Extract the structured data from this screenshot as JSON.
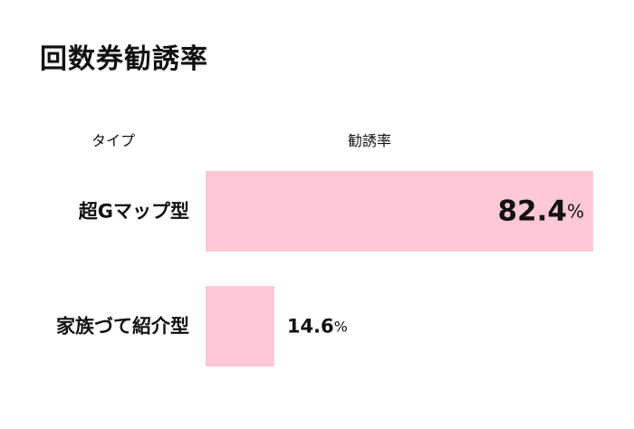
{
  "title": "回数券勧誘率",
  "columns": {
    "type": "タイプ",
    "rate": "勧誘率"
  },
  "colors": {
    "bar": "#ffc8d4",
    "text": "#111111"
  },
  "chart_data": {
    "type": "bar",
    "orientation": "horizontal",
    "title": "回数券勧誘率",
    "xlabel": "勧誘率",
    "ylabel": "タイプ",
    "unit": "%",
    "xlim": [
      0,
      82.4
    ],
    "grid": false,
    "legend": "none",
    "categories": [
      "超Gマップ型",
      "家族づて紹介型"
    ],
    "values": [
      82.4,
      14.6
    ],
    "value_labels": [
      "82.4",
      "14.6"
    ]
  }
}
